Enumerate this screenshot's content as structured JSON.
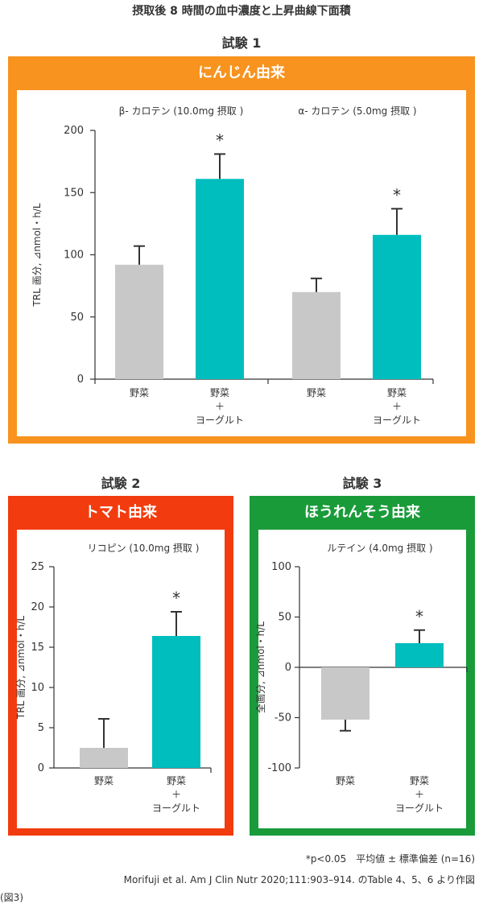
{
  "page_title": "摂取後 8 時間の血中濃度と上昇曲線下面積",
  "colors": {
    "orange": "#F7931E",
    "red": "#F23C0F",
    "green": "#1A9B3A",
    "gray_bar": "#C8C8C8",
    "teal_bar": "#00BDBE",
    "axis": "#333333"
  },
  "trial1": {
    "label": "試験 1",
    "header": "にんじん由来"
  },
  "trial2": {
    "label": "試験 2",
    "header": "トマト由来"
  },
  "trial3": {
    "label": "試験 3",
    "header": "ほうれんそう由来"
  },
  "chart_data": [
    {
      "type": "bar",
      "ylabel": "TRL 画分, ⊿nmol・h/L",
      "ylim": [
        0,
        200
      ],
      "yticks": [
        0,
        50,
        100,
        150,
        200
      ],
      "groups": [
        {
          "subtitle": "β- カロテン (10.0mg 摂取 )",
          "categories": [
            "野菜",
            "野菜\n＋\nヨーグルト"
          ],
          "values": [
            92,
            161
          ],
          "errors": [
            15,
            20
          ],
          "colors": [
            "#C8C8C8",
            "#00BDBE"
          ],
          "significance": [
            "",
            "*"
          ]
        },
        {
          "subtitle": "α- カロテン (5.0mg 摂取 )",
          "categories": [
            "野菜",
            "野菜\n＋\nヨーグルト"
          ],
          "values": [
            70,
            116
          ],
          "errors": [
            11,
            21
          ],
          "colors": [
            "#C8C8C8",
            "#00BDBE"
          ],
          "significance": [
            "",
            "*"
          ]
        }
      ]
    },
    {
      "type": "bar",
      "ylabel": "TRL 画分, ⊿nmol・h/L",
      "ylim": [
        0,
        25
      ],
      "yticks": [
        0,
        5,
        10,
        15,
        20,
        25
      ],
      "groups": [
        {
          "subtitle": "リコピン (10.0mg 摂取 )",
          "categories": [
            "野菜",
            "野菜\n＋\nヨーグルト"
          ],
          "values": [
            2.5,
            16.4
          ],
          "errors": [
            3.6,
            3.0
          ],
          "colors": [
            "#C8C8C8",
            "#00BDBE"
          ],
          "significance": [
            "",
            "*"
          ]
        }
      ]
    },
    {
      "type": "bar",
      "ylabel": "全画分, ⊿nmol・h/L",
      "ylim": [
        -100,
        100
      ],
      "yticks": [
        -100,
        -50,
        0,
        50,
        100
      ],
      "groups": [
        {
          "subtitle": "ルテイン (4.0mg 摂取 )",
          "categories": [
            "野菜",
            "野菜\n＋\nヨーグルト"
          ],
          "values": [
            -52,
            24
          ],
          "errors": [
            11,
            13
          ],
          "colors": [
            "#C8C8C8",
            "#00BDBE"
          ],
          "significance": [
            "",
            "*"
          ]
        }
      ]
    }
  ],
  "footnote1": "*p<0.05　平均値 ± 標準偏差 (n=16)",
  "footnote2": "Morifuji et al. Am J Clin Nutr 2020;111:903–914. のTable 4、5、6 より作図",
  "figure_label": "(図3)"
}
